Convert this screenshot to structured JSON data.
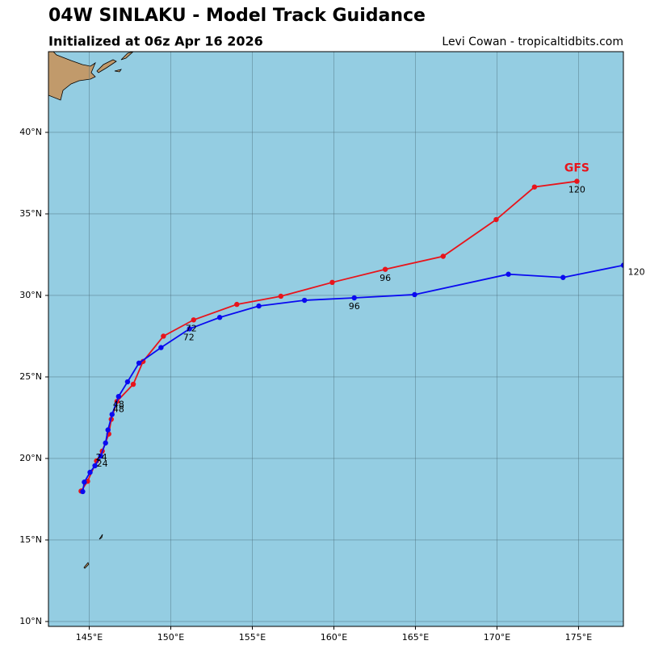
{
  "chart_data": {
    "type": "track-map",
    "title": "04W SINLAKU - Model Track Guidance",
    "subtitle": "Initialized at 06z Apr 16 2026",
    "credit": "Levi Cowan - tropicaltidbits.com",
    "xlim": [
      142.5,
      177.75
    ],
    "ylim": [
      9.7,
      44.95
    ],
    "xticks": [
      {
        "value": 145,
        "label": "145°E"
      },
      {
        "value": 150,
        "label": "150°E"
      },
      {
        "value": 155,
        "label": "155°E"
      },
      {
        "value": 160,
        "label": "160°E"
      },
      {
        "value": 165,
        "label": "165°E"
      },
      {
        "value": 170,
        "label": "170°E"
      },
      {
        "value": 175,
        "label": "175°E"
      }
    ],
    "yticks": [
      {
        "value": 10,
        "label": "10°N"
      },
      {
        "value": 15,
        "label": "15°N"
      },
      {
        "value": 20,
        "label": "20°N"
      },
      {
        "value": 25,
        "label": "25°N"
      },
      {
        "value": 30,
        "label": "30°N"
      },
      {
        "value": 35,
        "label": "35°N"
      },
      {
        "value": 40,
        "label": "40°N"
      }
    ],
    "grid": true,
    "series": [
      {
        "name": "GFS",
        "color": "#e8141b",
        "x": [
          144.5,
          144.9,
          145.45,
          145.8,
          146.2,
          146.35,
          146.7,
          147.7,
          148.3,
          149.55,
          151.4,
          154.05,
          156.75,
          159.9,
          163.15,
          166.7,
          169.95,
          172.3,
          174.9
        ],
        "values": [
          18.0,
          18.6,
          19.85,
          20.45,
          21.5,
          22.4,
          23.5,
          24.55,
          25.95,
          27.5,
          28.5,
          29.45,
          29.95,
          30.8,
          31.6,
          32.4,
          34.65,
          36.65,
          37.0
        ],
        "labels": [
          {
            "text": "24",
            "lon": 145.75,
            "lat": 20.05
          },
          {
            "text": "48",
            "lon": 146.8,
            "lat": 23.3
          },
          {
            "text": "72",
            "lon": 151.25,
            "lat": 27.95
          },
          {
            "text": "96",
            "lon": 163.15,
            "lat": 31.05
          },
          {
            "text": "120",
            "lon": 174.9,
            "lat": 36.45
          }
        ]
      },
      {
        "color": "#0a0af0",
        "x": [
          144.6,
          144.7,
          145.05,
          145.35,
          145.7,
          146.0,
          146.15,
          146.4,
          146.8,
          147.35,
          148.05,
          149.4,
          151.15,
          153.0,
          155.4,
          158.2,
          161.25,
          164.95,
          170.7,
          174.05,
          177.75
        ],
        "values": [
          17.97,
          18.55,
          19.15,
          19.55,
          20.15,
          20.95,
          21.75,
          22.7,
          23.8,
          24.7,
          25.85,
          26.8,
          27.95,
          28.65,
          29.35,
          29.7,
          29.85,
          30.05,
          31.3,
          31.1,
          31.85
        ],
        "labels": [
          {
            "text": "24",
            "lon": 145.8,
            "lat": 19.65
          },
          {
            "text": "48",
            "lon": 146.8,
            "lat": 23.0
          },
          {
            "text": "72",
            "lon": 151.1,
            "lat": 27.4
          },
          {
            "text": "96",
            "lon": 161.25,
            "lat": 29.3
          },
          {
            "text": "120",
            "lon": 178.55,
            "lat": 31.4
          }
        ]
      }
    ]
  }
}
